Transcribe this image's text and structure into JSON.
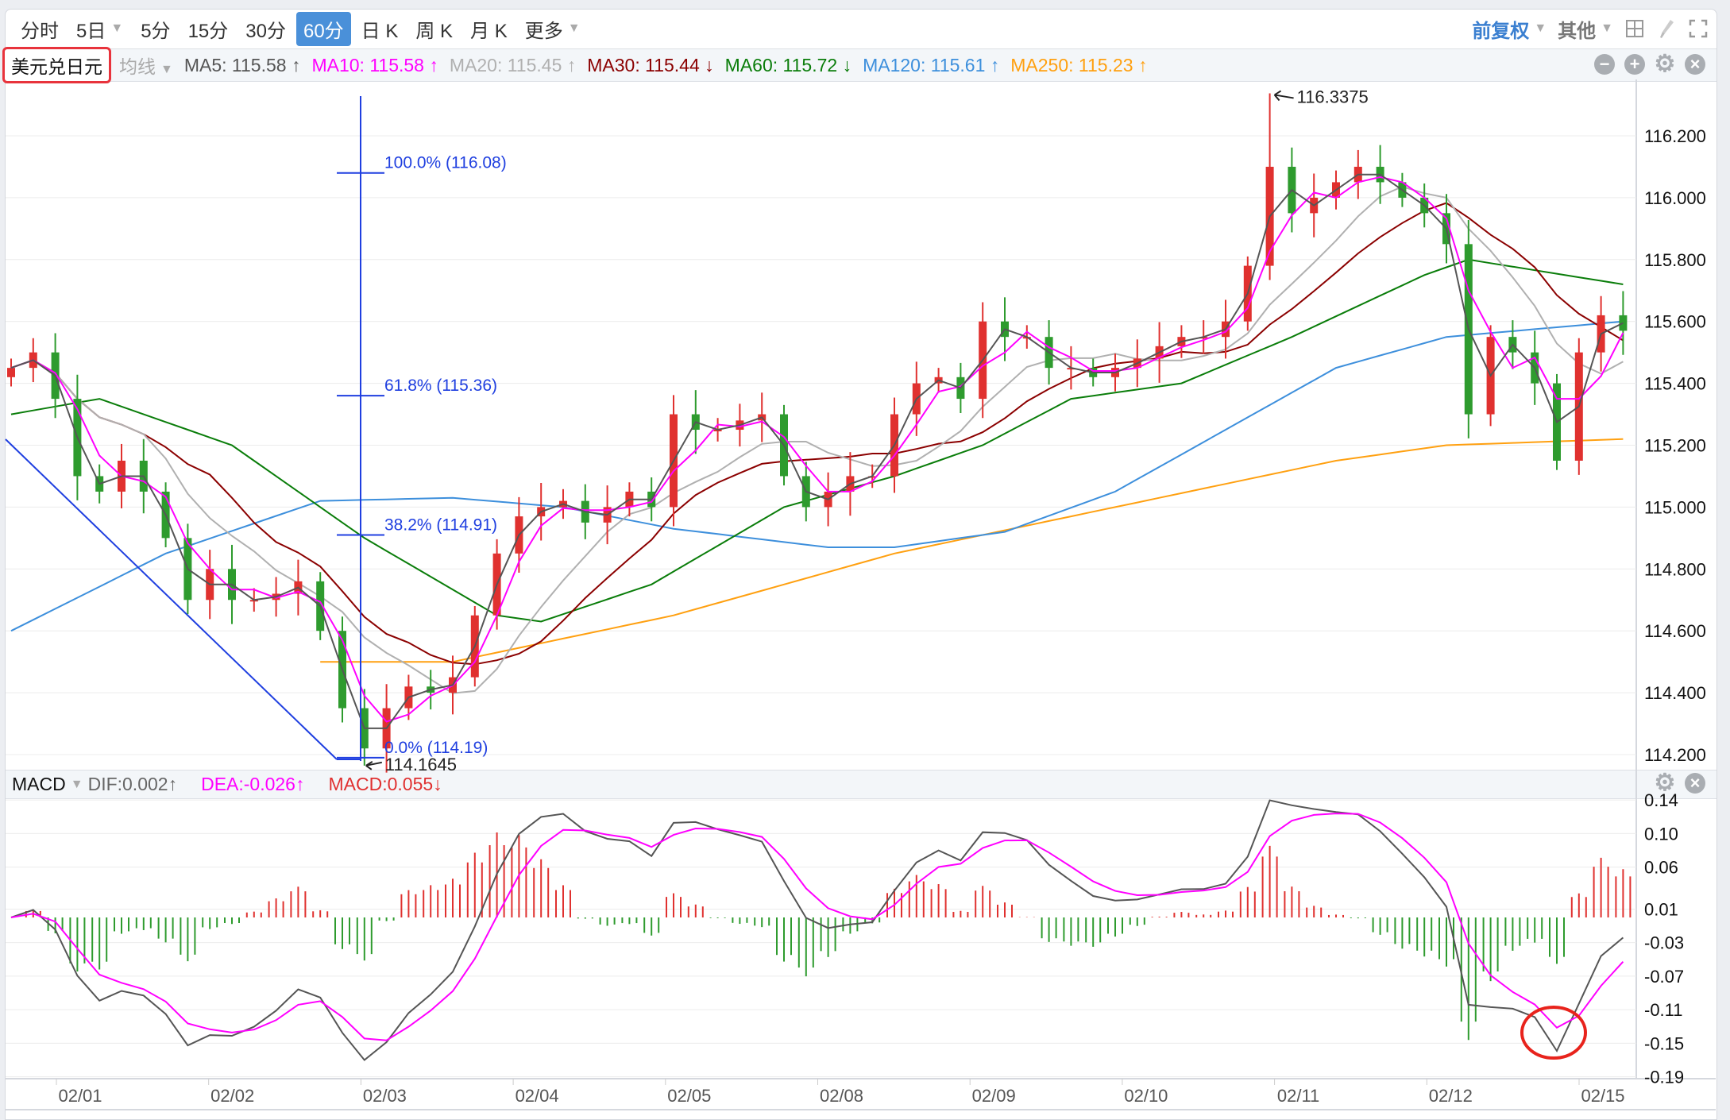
{
  "toolbar": {
    "periods": [
      "分时",
      "5日",
      "5分",
      "15分",
      "30分",
      "60分",
      "日 K",
      "周 K",
      "月 K",
      "更多"
    ],
    "active": "60分",
    "adjust": "前复权",
    "other": "其他"
  },
  "symbol": "美元兑日元",
  "ma_row": {
    "selector": "均线",
    "items": [
      {
        "label": "MA5: 115.58 ↑",
        "color": "#555555"
      },
      {
        "label": "MA10: 115.58 ↑",
        "color": "#ff00ff"
      },
      {
        "label": "MA20: 115.45 ↑",
        "color": "#b0b0b0"
      },
      {
        "label": "MA30: 115.44 ↓",
        "color": "#8b0000"
      },
      {
        "label": "MA60: 115.72 ↓",
        "color": "#0a7d0a"
      },
      {
        "label": "MA120: 115.61 ↑",
        "color": "#3d8fdc"
      },
      {
        "label": "MA250: 115.23 ↑",
        "color": "#ffa010"
      }
    ]
  },
  "macd_row": {
    "name": "MACD",
    "dif": "DIF:0.002↑",
    "dea": "DEA:-0.026↑",
    "macd": "MACD:0.055↓"
  },
  "chart_data": {
    "type": "candlestick",
    "price_ticks": [
      "116.200",
      "116.000",
      "115.800",
      "115.600",
      "115.400",
      "115.200",
      "115.000",
      "114.800",
      "114.600",
      "114.400",
      "114.200"
    ],
    "macd_ticks": [
      "0.14",
      "0.10",
      "0.06",
      "0.01",
      "-0.03",
      "-0.07",
      "-0.11",
      "-0.15",
      "-0.19"
    ],
    "dates": [
      "02/01",
      "02/02",
      "02/03",
      "02/04",
      "02/05",
      "02/08",
      "02/09",
      "02/10",
      "02/11",
      "02/12",
      "02/15"
    ],
    "closes": [
      115.45,
      115.5,
      115.35,
      115.1,
      115.05,
      115.15,
      115.05,
      114.9,
      114.7,
      114.8,
      114.7,
      114.7,
      114.72,
      114.76,
      114.6,
      114.35,
      114.22,
      114.35,
      114.42,
      114.4,
      114.45,
      114.65,
      114.85,
      114.97,
      115.0,
      115.02,
      114.95,
      115.0,
      115.05,
      115.0,
      115.3,
      115.25,
      115.25,
      115.28,
      115.3,
      115.1,
      115.0,
      115.05,
      115.1,
      115.1,
      115.3,
      115.4,
      115.42,
      115.35,
      115.6,
      115.55,
      115.55,
      115.45,
      115.45,
      115.42,
      115.45,
      115.48,
      115.52,
      115.55,
      115.55,
      115.6,
      115.78,
      116.1,
      115.95,
      116.0,
      116.05,
      116.1,
      116.05,
      116.0,
      115.95,
      115.85,
      115.3,
      115.55,
      115.5,
      115.4,
      115.15,
      115.5,
      115.62,
      115.57
    ],
    "ma60_anchors": [
      [
        0,
        115.3
      ],
      [
        4,
        115.35
      ],
      [
        10,
        115.2
      ],
      [
        16,
        114.9
      ],
      [
        22,
        114.65
      ],
      [
        24,
        114.63
      ],
      [
        29,
        114.75
      ],
      [
        35,
        115.0
      ],
      [
        40,
        115.1
      ],
      [
        44,
        115.2
      ],
      [
        48,
        115.35
      ],
      [
        53,
        115.4
      ],
      [
        58,
        115.55
      ],
      [
        64,
        115.75
      ],
      [
        66,
        115.8
      ],
      [
        73,
        115.72
      ]
    ],
    "ma120_anchors": [
      [
        0,
        114.6
      ],
      [
        7,
        114.85
      ],
      [
        14,
        115.02
      ],
      [
        20,
        115.03
      ],
      [
        25,
        115.0
      ],
      [
        30,
        114.93
      ],
      [
        37,
        114.87
      ],
      [
        40,
        114.87
      ],
      [
        45,
        114.92
      ],
      [
        50,
        115.05
      ],
      [
        55,
        115.25
      ],
      [
        60,
        115.45
      ],
      [
        65,
        115.55
      ],
      [
        73,
        115.6
      ]
    ],
    "ma250_anchors": [
      [
        14,
        114.5
      ],
      [
        20,
        114.5
      ],
      [
        30,
        114.65
      ],
      [
        40,
        114.85
      ],
      [
        50,
        115.0
      ],
      [
        60,
        115.15
      ],
      [
        65,
        115.2
      ],
      [
        73,
        115.22
      ]
    ],
    "high_label": "116.3375",
    "high_value": 116.3375,
    "high_index": 57,
    "low_label": "114.1645",
    "low_value": 114.1645,
    "low_index": 16,
    "fib_levels": [
      {
        "label": "100.0% (116.08)",
        "value": 116.08
      },
      {
        "label": "61.8% (115.36)",
        "value": 115.36
      },
      {
        "label": "38.2% (114.91)",
        "value": 114.91
      },
      {
        "label": "0.0% (114.19)",
        "value": 114.19
      }
    ],
    "colors": {
      "up": "#e0312f",
      "down": "#2e9b2e",
      "fib": "#1f3fe0",
      "dif": "#555555",
      "dea": "#ff00ff",
      "highlight": "#e8231c"
    }
  }
}
